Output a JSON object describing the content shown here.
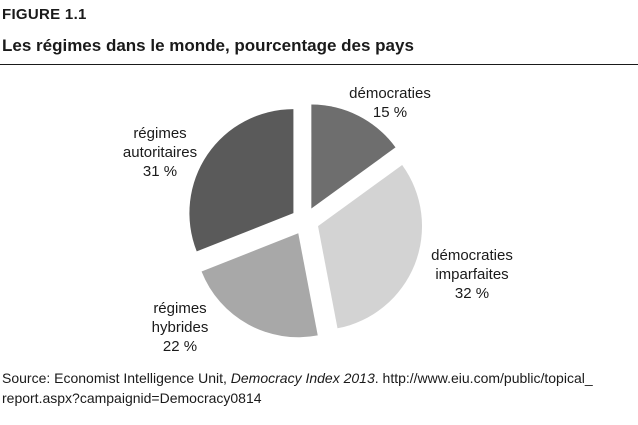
{
  "figure": {
    "label": "FIGURE 1.1",
    "title": "Les régimes dans le monde, pourcentage des pays"
  },
  "chart_data": {
    "type": "pie",
    "title": "Les régimes dans le monde, pourcentage des pays",
    "unit": "%",
    "slices": [
      {
        "name": "démocraties",
        "value": 15,
        "label_lines": [
          "démocraties",
          "15 %"
        ],
        "color": "#6e6e6e"
      },
      {
        "name": "démocraties imparfaites",
        "value": 32,
        "label_lines": [
          "démocraties",
          "imparfaites",
          "32 %"
        ],
        "color": "#d3d3d3"
      },
      {
        "name": "régimes hybrides",
        "value": 22,
        "label_lines": [
          "régimes",
          "hybrides",
          "22 %"
        ],
        "color": "#a8a8a8"
      },
      {
        "name": "régimes autoritaires",
        "value": 31,
        "label_lines": [
          "régimes",
          "autoritaires",
          "31 %"
        ],
        "color": "#5a5a5a"
      }
    ]
  },
  "source": {
    "prefix": "Source: Economist Intelligence Unit, ",
    "publication": "Democracy Index 2013",
    "suffix": ". http://www.eiu.com/public/topical_ report.aspx?campaignid=Democracy0814"
  }
}
